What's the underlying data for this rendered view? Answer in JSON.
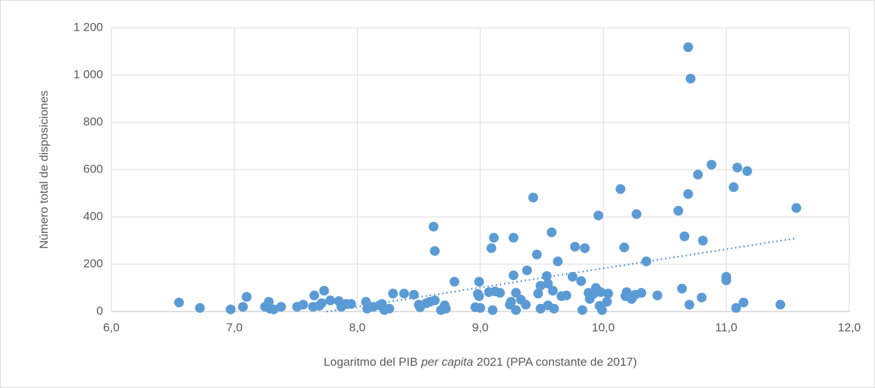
{
  "chart_data": {
    "type": "scatter",
    "xlabel": [
      "Logaritmo del PIB",
      "per capita",
      "2021 (PPA constante de 2017)"
    ],
    "ylabel": "Número total de disposiciones",
    "color": "#5b9bd5",
    "trend_color": "#5b9bd5",
    "grid": true,
    "xlim": [
      6,
      12
    ],
    "ylim": [
      0,
      1200
    ],
    "xticks": [
      {
        "value": 6,
        "label": "6,0"
      },
      {
        "value": 7,
        "label": "7,0"
      },
      {
        "value": 8,
        "label": "8,0"
      },
      {
        "value": 9,
        "label": "9,0"
      },
      {
        "value": 10,
        "label": "10,0"
      },
      {
        "value": 11,
        "label": "11,0"
      },
      {
        "value": 12,
        "label": "12,0"
      }
    ],
    "yticks": [
      0,
      200,
      400,
      600,
      800,
      {
        "value": 1000,
        "label": "1 000"
      },
      {
        "value": 1200,
        "label": "1 200"
      }
    ],
    "trendline": {
      "x": [
        7.75,
        11.57
      ],
      "values": [
        0,
        310
      ]
    },
    "x": [
      6.55,
      6.72,
      6.97,
      7.07,
      7.1,
      7.25,
      7.28,
      7.29,
      7.32,
      7.38,
      7.51,
      7.56,
      7.65,
      7.64,
      7.69,
      7.71,
      7.73,
      7.78,
      7.85,
      7.87,
      7.91,
      7.95,
      8.07,
      8.08,
      8.13,
      8.18,
      8.2,
      8.22,
      8.26,
      8.29,
      8.38,
      8.46,
      8.5,
      8.51,
      8.56,
      8.59,
      8.63,
      8.62,
      8.63,
      8.68,
      8.71,
      8.72,
      8.79,
      8.96,
      8.98,
      8.99,
      9.0,
      8.99,
      9.07,
      9.09,
      9.11,
      9.1,
      9.12,
      9.16,
      9.24,
      9.25,
      9.27,
      9.27,
      9.29,
      9.29,
      9.33,
      9.37,
      9.38,
      9.43,
      9.46,
      9.47,
      9.49,
      9.49,
      9.54,
      9.55,
      9.55,
      9.58,
      9.59,
      9.6,
      9.63,
      9.66,
      9.7,
      9.75,
      9.77,
      9.82,
      9.83,
      9.85,
      9.88,
      9.89,
      9.92,
      9.94,
      9.96,
      9.98,
      9.97,
      9.99,
      10.03,
      10.04,
      10.14,
      10.17,
      10.18,
      10.19,
      10.23,
      10.26,
      10.27,
      10.31,
      10.35,
      10.44,
      10.61,
      10.64,
      10.66,
      10.69,
      10.69,
      10.7,
      10.71,
      10.77,
      10.81,
      10.8,
      10.88,
      11.0,
      11.0,
      11.06,
      11.09,
      11.08,
      11.14,
      11.17,
      11.44,
      11.57
    ],
    "values": [
      38,
      15,
      9,
      20,
      62,
      20,
      41,
      12,
      9,
      20,
      20,
      29,
      68,
      20,
      24,
      35,
      88,
      47,
      44,
      20,
      32,
      32,
      41,
      12,
      20,
      26,
      32,
      6,
      12,
      76,
      76,
      71,
      29,
      18,
      35,
      41,
      47,
      359,
      256,
      6,
      26,
      12,
      126,
      18,
      74,
      126,
      15,
      65,
      82,
      268,
      312,
      6,
      85,
      79,
      29,
      41,
      312,
      153,
      79,
      6,
      50,
      29,
      174,
      482,
      241,
      76,
      109,
      12,
      150,
      118,
      26,
      335,
      88,
      12,
      212,
      65,
      68,
      147,
      274,
      129,
      6,
      268,
      79,
      53,
      74,
      100,
      406,
      82,
      24,
      6,
      41,
      76,
      518,
      271,
      65,
      82,
      53,
      71,
      412,
      79,
      212,
      68,
      426,
      97,
      318,
      1118,
      497,
      29,
      985,
      579,
      300,
      59,
      621,
      147,
      132,
      526,
      609,
      15,
      38,
      594,
      29,
      438
    ]
  }
}
